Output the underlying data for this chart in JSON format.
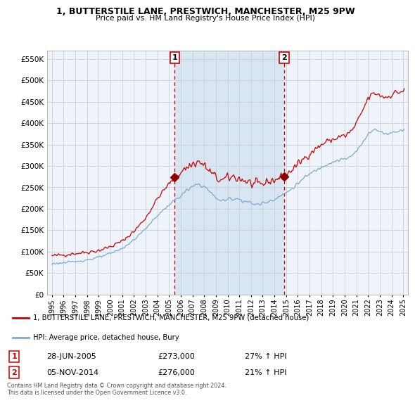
{
  "title": "1, BUTTERSTILE LANE, PRESTWICH, MANCHESTER, M25 9PW",
  "subtitle": "Price paid vs. HM Land Registry's House Price Index (HPI)",
  "background_color": "#ffffff",
  "plot_background": "#e8f0f8",
  "plot_background_light": "#eef4fa",
  "shaded_region_color": "#cfe0f0",
  "red_line_color": "#cc0000",
  "blue_line_color": "#7aaad0",
  "marker_color": "#8b0000",
  "grid_color": "#c8d0d8",
  "marker1_date_x": 2005.49,
  "marker1_y": 273000,
  "marker1_label": "1",
  "marker2_date_x": 2014.84,
  "marker2_y": 276000,
  "marker2_label": "2",
  "legend_red_label": "1, BUTTERSTILE LANE, PRESTWICH, MANCHESTER, M25 9PW (detached house)",
  "legend_blue_label": "HPI: Average price, detached house, Bury",
  "annotation1_date": "28-JUN-2005",
  "annotation1_price": "£273,000",
  "annotation1_hpi": "27% ↑ HPI",
  "annotation2_date": "05-NOV-2014",
  "annotation2_price": "£276,000",
  "annotation2_hpi": "21% ↑ HPI",
  "footer": "Contains HM Land Registry data © Crown copyright and database right 2024.\nThis data is licensed under the Open Government Licence v3.0.",
  "ylim": [
    0,
    570000
  ],
  "yticks": [
    0,
    50000,
    100000,
    150000,
    200000,
    250000,
    300000,
    350000,
    400000,
    450000,
    500000,
    550000
  ],
  "xlim_start": 1994.6,
  "xlim_end": 2025.4
}
